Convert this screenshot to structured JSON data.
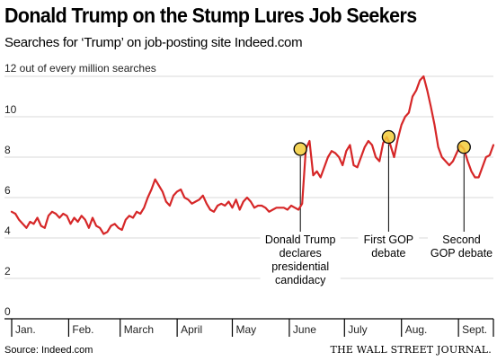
{
  "header": {
    "title": "Donald Trump on the Stump Lures Job Seekers",
    "subtitle": "Searches for ‘Trump’ on job-posting site Indeed.com"
  },
  "footer": {
    "source": "Source: Indeed.com",
    "publisher": "THE WALL STREET JOURNAL."
  },
  "colors": {
    "line": "#d62728",
    "marker_fill": "#f2cc3a",
    "grid": "#d9d9d9",
    "axis": "#000000"
  },
  "chart_data": {
    "type": "line",
    "title": "Donald Trump on the Stump Lures Job Seekers",
    "subtitle": "Searches for ‘Trump’ on job-posting site Indeed.com",
    "unit_label": "12 out of every million searches",
    "ylim": [
      0,
      12
    ],
    "yticks": [
      {
        "value": 0,
        "label": "0"
      },
      {
        "value": 2,
        "label": "2"
      },
      {
        "value": 4,
        "label": "4"
      },
      {
        "value": 6,
        "label": "6"
      },
      {
        "value": 8,
        "label": "8"
      },
      {
        "value": 10,
        "label": "10"
      }
    ],
    "xlim": [
      0,
      262
    ],
    "months": [
      {
        "label": "Jan.",
        "start": 0
      },
      {
        "label": "Feb.",
        "start": 31
      },
      {
        "label": "March",
        "start": 59
      },
      {
        "label": "April",
        "start": 90
      },
      {
        "label": "May",
        "start": 120
      },
      {
        "label": "June",
        "start": 151
      },
      {
        "label": "July",
        "start": 181
      },
      {
        "label": "Aug.",
        "start": 212
      },
      {
        "label": "Sept.",
        "start": 243
      }
    ],
    "grid": true,
    "series": [
      {
        "x": [
          0,
          2,
          4,
          6,
          8,
          10,
          12,
          14,
          16,
          18,
          20,
          22,
          24,
          26,
          28,
          30,
          32,
          34,
          36,
          38,
          40,
          42,
          44,
          46,
          48,
          50,
          52,
          54,
          56,
          58,
          60,
          62,
          64,
          66,
          68,
          70,
          72,
          74,
          76,
          78,
          80,
          82,
          84,
          86,
          88,
          90,
          92,
          94,
          96,
          98,
          100,
          102,
          104,
          106,
          108,
          110,
          112,
          114,
          116,
          118,
          120,
          122,
          124,
          126,
          128,
          130,
          132,
          134,
          136,
          138,
          140,
          142,
          144,
          146,
          148,
          150,
          152,
          154,
          156,
          158,
          160,
          162,
          164,
          166,
          168,
          170,
          172,
          174,
          176,
          178,
          180,
          182,
          184,
          186,
          188,
          190,
          192,
          194,
          196,
          198,
          200,
          202,
          204,
          206,
          208,
          210,
          212,
          214,
          216,
          218,
          220,
          222,
          224,
          226,
          228,
          230,
          232,
          234,
          236,
          238,
          240,
          242,
          244,
          246,
          248,
          250,
          252,
          254,
          256,
          258,
          260,
          262
        ],
        "y": [
          5.3,
          5.2,
          4.9,
          4.7,
          4.5,
          4.8,
          4.7,
          5.0,
          4.6,
          4.5,
          5.1,
          5.3,
          5.2,
          5.0,
          5.2,
          5.1,
          4.7,
          5.0,
          4.8,
          5.1,
          4.9,
          4.5,
          5.0,
          4.6,
          4.5,
          4.2,
          4.3,
          4.6,
          4.7,
          4.5,
          4.4,
          4.9,
          5.1,
          5.0,
          5.3,
          5.2,
          5.5,
          6.0,
          6.4,
          6.9,
          6.6,
          6.3,
          5.8,
          5.6,
          6.1,
          6.3,
          6.4,
          6.0,
          5.9,
          5.7,
          5.8,
          5.9,
          6.1,
          5.7,
          5.4,
          5.3,
          5.6,
          5.7,
          5.6,
          5.8,
          5.5,
          5.9,
          5.4,
          5.8,
          6.0,
          5.8,
          5.5,
          5.6,
          5.6,
          5.5,
          5.3,
          5.4,
          5.5,
          5.5,
          5.5,
          5.4,
          5.6,
          5.5,
          5.4,
          5.7,
          8.4,
          8.8,
          7.1,
          7.3,
          7.0,
          7.5,
          8.0,
          8.3,
          8.2,
          8.0,
          7.6,
          8.3,
          8.6,
          7.6,
          7.5,
          8.0,
          8.5,
          8.8,
          8.6,
          8.0,
          7.8,
          8.7,
          9.0,
          8.6,
          8.0,
          8.9,
          9.6,
          10.0,
          10.2,
          11.0,
          11.3,
          11.8,
          12.0,
          11.3,
          10.5,
          9.6,
          8.5,
          8.0,
          7.8,
          7.6,
          7.8,
          8.2,
          8.6,
          8.4,
          7.8,
          7.3,
          7.0,
          7.0,
          7.5,
          8.0,
          8.1,
          8.6
        ]
      }
    ],
    "annotations": [
      {
        "x": 157,
        "y": 8.4,
        "lines": [
          "Donald Trump",
          "declares",
          "presidential",
          "candidacy"
        ]
      },
      {
        "x": 205,
        "y": 9.0,
        "lines": [
          "First GOP",
          "debate"
        ]
      },
      {
        "x": 246,
        "y": 8.5,
        "lines": [
          "Second",
          "GOP debate"
        ]
      }
    ]
  }
}
